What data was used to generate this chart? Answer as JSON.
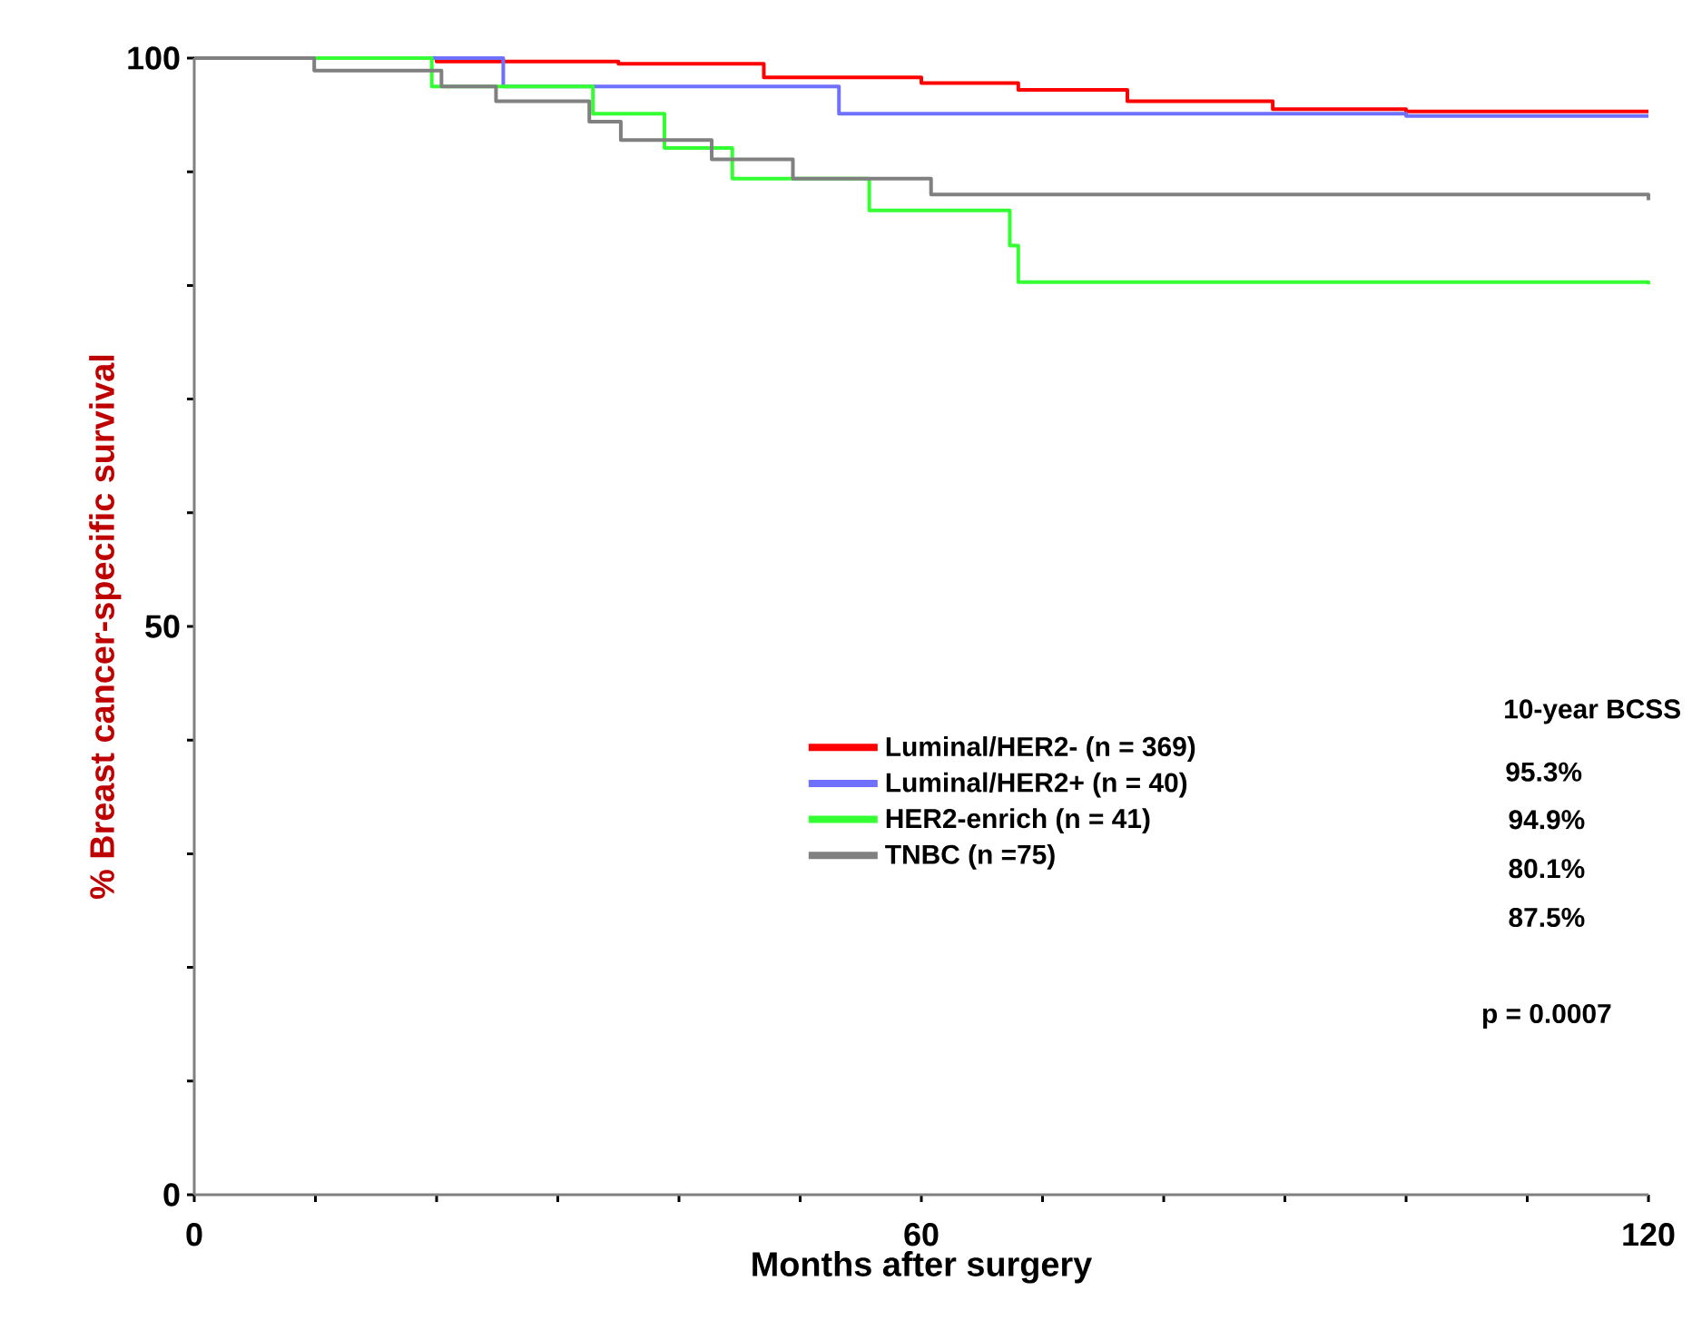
{
  "chart_data": {
    "type": "step",
    "xlabel": "Months after surgery",
    "ylabel": "% Breast cancer-specific survival",
    "xlim": [
      0,
      120
    ],
    "ylim": [
      0,
      100
    ],
    "xticks": [
      0,
      {
        "value": 10,
        "label": null
      },
      {
        "value": 20,
        "label": null
      },
      {
        "value": 30,
        "label": null
      },
      {
        "value": 40,
        "label": null
      },
      {
        "value": 50,
        "label": null
      },
      60,
      {
        "value": 70,
        "label": null
      },
      {
        "value": 80,
        "label": null
      },
      {
        "value": 90,
        "label": null
      },
      {
        "value": 100,
        "label": null
      },
      {
        "value": 110,
        "label": null
      },
      120
    ],
    "yticks": [
      0,
      {
        "value": 10,
        "label": null
      },
      {
        "value": 20,
        "label": null
      },
      {
        "value": 30,
        "label": null
      },
      {
        "value": 40,
        "label": null
      },
      50,
      {
        "value": 60,
        "label": null
      },
      {
        "value": 70,
        "label": null
      },
      {
        "value": 80,
        "label": null
      },
      {
        "value": 90,
        "label": null
      },
      100
    ],
    "grid": false,
    "legend": "bottom right",
    "line_style": "solid",
    "series": [
      {
        "name": "Luminal/HER2- (n = 369)",
        "color": "#ff0000",
        "x": [
          0,
          20,
          35,
          47,
          60,
          68,
          77,
          89,
          100,
          120
        ],
        "values": [
          100,
          99.7,
          99.5,
          98.3,
          97.8,
          97.2,
          96.2,
          95.5,
          95.3,
          95.3
        ]
      },
      {
        "name": "Luminal/HER2+ (n = 40)",
        "color": "#7070ff",
        "x": [
          0,
          25.5,
          53.2,
          100,
          120
        ],
        "values": [
          100,
          97.5,
          95.1,
          94.9,
          94.9
        ]
      },
      {
        "name": "HER2-enrich (n = 41)",
        "color": "#33ff33",
        "x": [
          0,
          19.6,
          32.9,
          38.8,
          44.4,
          55.7,
          67.3,
          68,
          120
        ],
        "values": [
          100,
          97.5,
          95.1,
          92.1,
          89.4,
          86.6,
          83.5,
          80.3,
          80.1
        ]
      },
      {
        "name": "TNBC (n =75)",
        "color": "#808080",
        "x": [
          0,
          9.9,
          20.4,
          24.9,
          32.6,
          35.2,
          42.7,
          49.4,
          60.8,
          120
        ],
        "values": [
          100,
          98.9,
          97.5,
          96.2,
          94.4,
          92.8,
          91.1,
          89.4,
          88.0,
          87.5
        ]
      }
    ],
    "annotations": [
      "10-year BCSS",
      "95.3%",
      "94.9%",
      "80.1%",
      "87.5%",
      "p = 0.0007"
    ]
  }
}
